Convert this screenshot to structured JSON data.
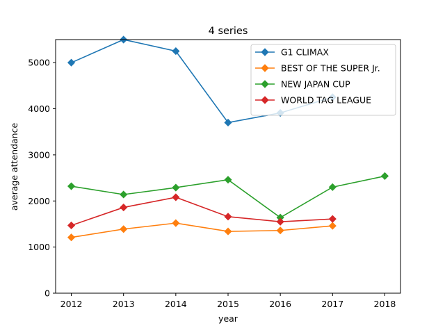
{
  "chart_data": {
    "type": "line",
    "title": "4 series",
    "xlabel": "year",
    "ylabel": "average attendance",
    "x": [
      2012,
      2013,
      2014,
      2015,
      2016,
      2017,
      2018
    ],
    "xlim": [
      2011.7,
      2018.3
    ],
    "ylim": [
      0,
      5500
    ],
    "yticks": [
      0,
      1000,
      2000,
      3000,
      4000,
      5000
    ],
    "grid": false,
    "legend_position": "top-right",
    "marker": "diamond",
    "series": [
      {
        "name": "G1 CLIMAX",
        "color": "#1f77b4",
        "points": [
          [
            2012,
            5000
          ],
          [
            2013,
            5500
          ],
          [
            2014,
            5250
          ],
          [
            2015,
            3700
          ],
          [
            2016,
            3910
          ],
          [
            2017,
            4250
          ]
        ]
      },
      {
        "name": "BEST OF THE SUPER Jr.",
        "color": "#ff7f0e",
        "points": [
          [
            2012,
            1210
          ],
          [
            2013,
            1390
          ],
          [
            2014,
            1520
          ],
          [
            2015,
            1340
          ],
          [
            2016,
            1360
          ],
          [
            2017,
            1460
          ]
        ]
      },
      {
        "name": "NEW JAPAN CUP",
        "color": "#2ca02c",
        "points": [
          [
            2012,
            2320
          ],
          [
            2013,
            2140
          ],
          [
            2014,
            2290
          ],
          [
            2015,
            2460
          ],
          [
            2016,
            1640
          ],
          [
            2017,
            2300
          ],
          [
            2018,
            2540
          ]
        ]
      },
      {
        "name": "WORLD TAG LEAGUE",
        "color": "#d62728",
        "points": [
          [
            2012,
            1470
          ],
          [
            2013,
            1860
          ],
          [
            2014,
            2080
          ],
          [
            2015,
            1660
          ],
          [
            2016,
            1550
          ],
          [
            2017,
            1610
          ]
        ]
      }
    ]
  }
}
